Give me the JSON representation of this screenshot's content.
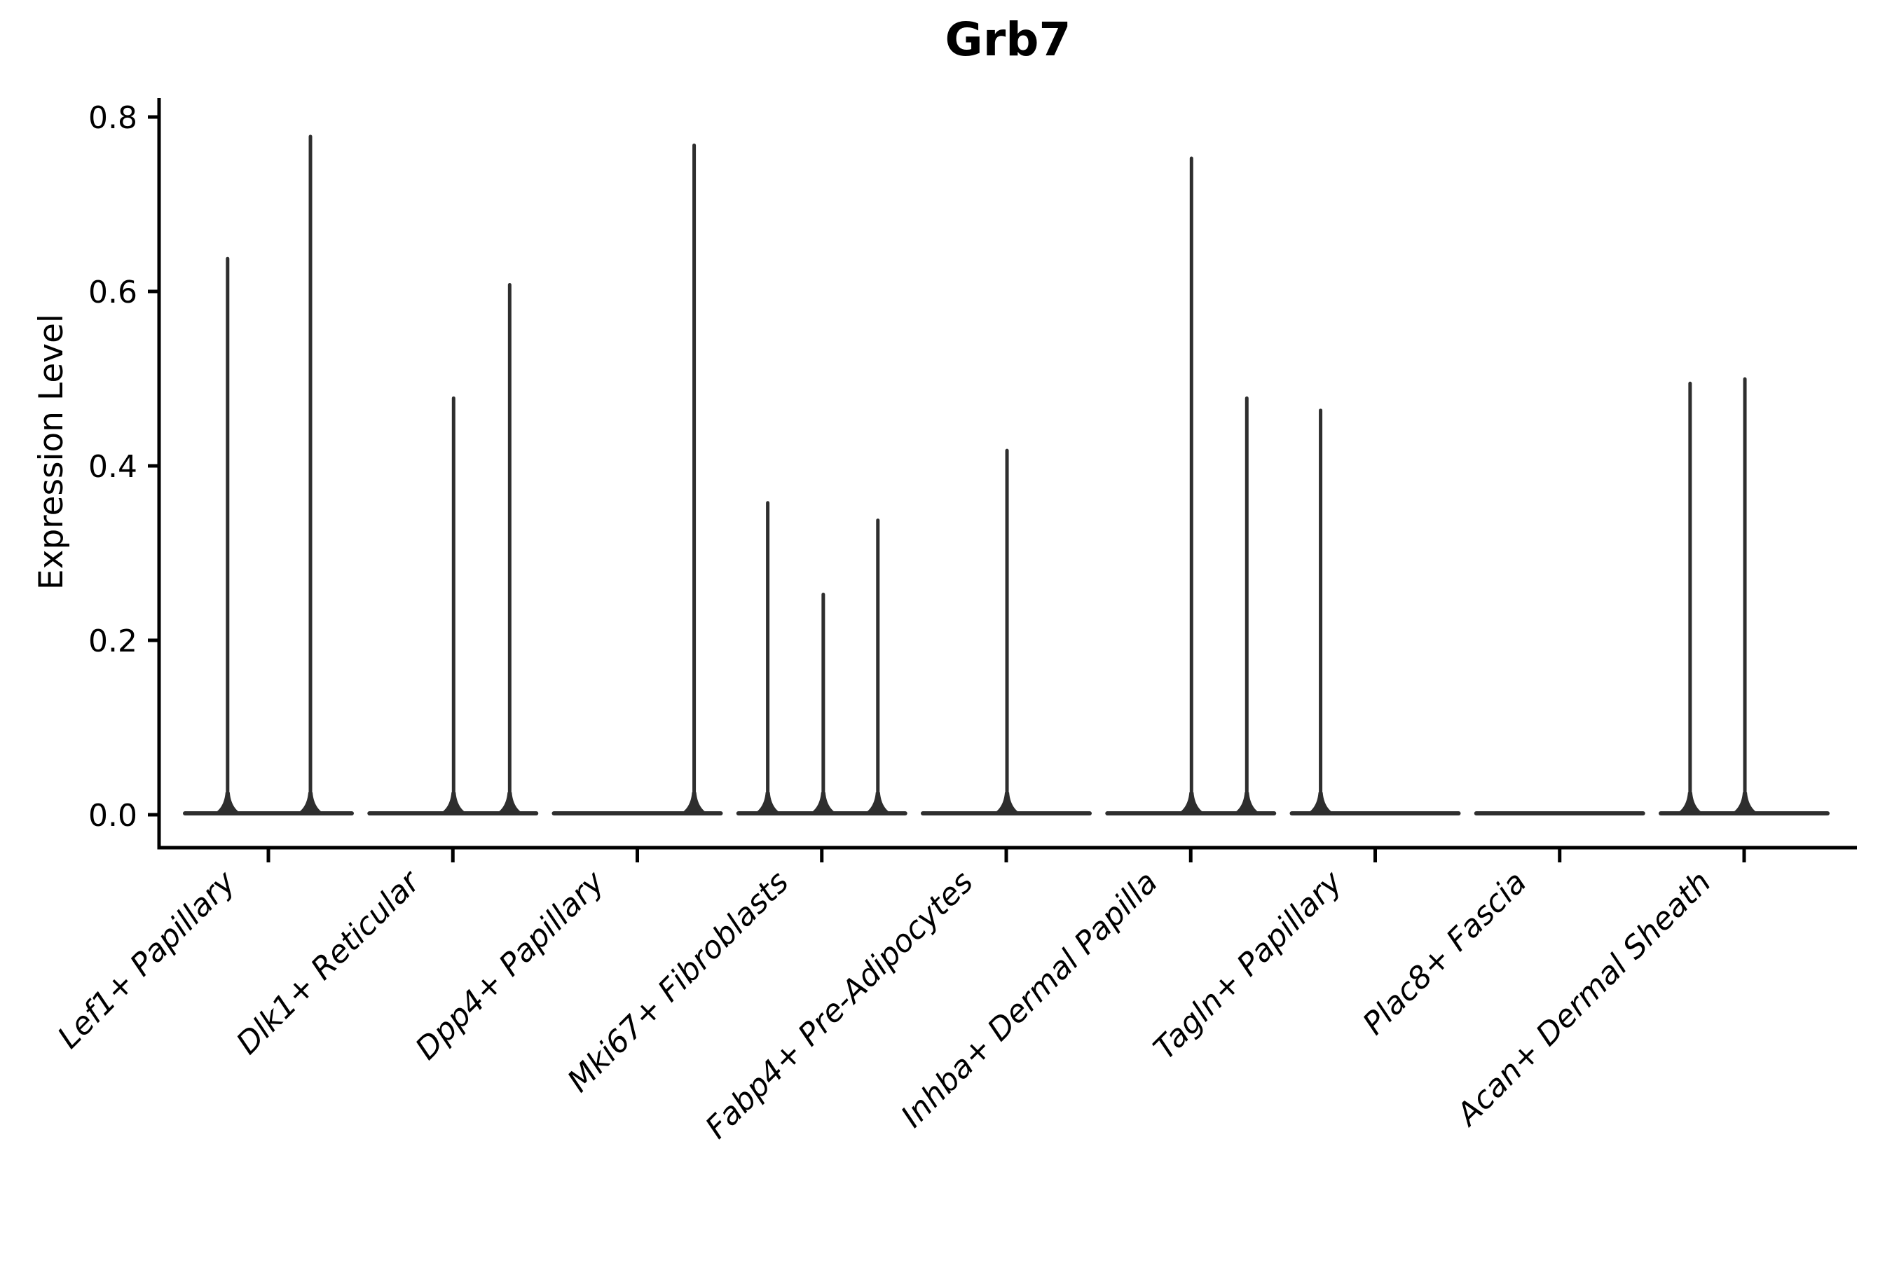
{
  "chart_data": {
    "type": "violin",
    "title": "Grb7",
    "ylabel": "Expression Level",
    "xlabel": "",
    "yticks": [
      0.0,
      0.2,
      0.4,
      0.6,
      0.8
    ],
    "ylim": [
      -0.038,
      0.822
    ],
    "grid": false,
    "legend": null,
    "line_color": "#2e2e2e",
    "axis_color": "#000000",
    "violin_group_halfwidth": 0.463,
    "categories": [
      {
        "label": "Lef1+ Papillary",
        "spikes": [
          {
            "offset": -0.221,
            "max": 0.64
          },
          {
            "offset": 0.228,
            "max": 0.78
          }
        ]
      },
      {
        "label": "Dlk1+ Reticular",
        "spikes": [
          {
            "offset": 0.004,
            "max": 0.48
          },
          {
            "offset": 0.308,
            "max": 0.61
          }
        ]
      },
      {
        "label": "Dpp4+ Papillary",
        "spikes": [
          {
            "offset": 0.308,
            "max": 0.77
          }
        ]
      },
      {
        "label": "Mki67+ Fibroblasts",
        "spikes": [
          {
            "offset": -0.293,
            "max": 0.36
          },
          {
            "offset": 0.008,
            "max": 0.255
          },
          {
            "offset": 0.304,
            "max": 0.34
          }
        ]
      },
      {
        "label": "Fabp4+ Pre-Adipocytes",
        "spikes": [
          {
            "offset": 0.004,
            "max": 0.42
          }
        ]
      },
      {
        "label": "Inhba+ Dermal Papilla",
        "spikes": [
          {
            "offset": 0.004,
            "max": 0.755
          },
          {
            "offset": 0.304,
            "max": 0.48
          }
        ]
      },
      {
        "label": "Tagln+ Papillary",
        "spikes": [
          {
            "offset": -0.296,
            "max": 0.466
          }
        ]
      },
      {
        "label": "Plac8+ Fascia",
        "spikes": []
      },
      {
        "label": "Acan+ Dermal Sheath",
        "spikes": [
          {
            "offset": -0.293,
            "max": 0.497
          },
          {
            "offset": 0.004,
            "max": 0.502
          }
        ]
      }
    ]
  }
}
